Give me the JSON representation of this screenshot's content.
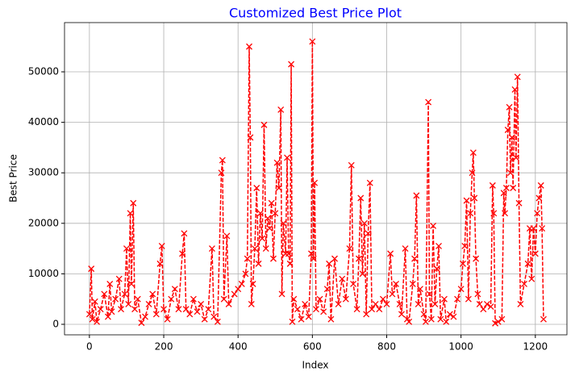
{
  "chart_data": {
    "type": "line",
    "title": "Customized Best Price Plot",
    "title_color": "#0000ff",
    "x_label": "Index",
    "y_label": "Best Price",
    "xlim": [
      -67,
      1285
    ],
    "ylim": [
      -2080,
      59750
    ],
    "xticks": [
      0,
      200,
      400,
      600,
      800,
      1000,
      1200
    ],
    "yticks": [
      0,
      10000,
      20000,
      30000,
      40000,
      50000
    ],
    "grid": true,
    "x": [
      0,
      5,
      8,
      15,
      20,
      30,
      40,
      50,
      55,
      60,
      70,
      80,
      85,
      95,
      100,
      105,
      110,
      113,
      118,
      122,
      130,
      140,
      150,
      160,
      170,
      180,
      190,
      195,
      200,
      210,
      220,
      230,
      240,
      250,
      255,
      260,
      270,
      280,
      290,
      300,
      310,
      320,
      330,
      335,
      345,
      355,
      358,
      362,
      370,
      375,
      390,
      400,
      410,
      420,
      425,
      430,
      433,
      436,
      440,
      445,
      450,
      455,
      460,
      465,
      470,
      475,
      480,
      485,
      490,
      495,
      500,
      505,
      510,
      515,
      518,
      522,
      528,
      532,
      536,
      540,
      543,
      546,
      550,
      560,
      570,
      580,
      590,
      597,
      600,
      603,
      606,
      610,
      620,
      630,
      640,
      645,
      650,
      660,
      670,
      680,
      690,
      700,
      705,
      710,
      720,
      725,
      730,
      735,
      740,
      745,
      750,
      755,
      760,
      770,
      780,
      790,
      800,
      810,
      815,
      825,
      835,
      840,
      850,
      855,
      860,
      870,
      875,
      880,
      885,
      890,
      900,
      905,
      912,
      915,
      920,
      925,
      930,
      935,
      940,
      945,
      955,
      960,
      970,
      980,
      990,
      1000,
      1005,
      1010,
      1015,
      1020,
      1025,
      1030,
      1033,
      1036,
      1040,
      1045,
      1050,
      1060,
      1070,
      1080,
      1085,
      1088,
      1092,
      1100,
      1110,
      1115,
      1118,
      1122,
      1126,
      1130,
      1133,
      1137,
      1140,
      1145,
      1148,
      1152,
      1156,
      1160,
      1170,
      1180,
      1185,
      1190,
      1195,
      1200,
      1205,
      1210,
      1215,
      1218,
      1222
    ],
    "series": [
      {
        "color": "#ff0000",
        "values": [
          2000,
          11000,
          1000,
          4500,
          500,
          3000,
          6000,
          1500,
          8000,
          2500,
          5000,
          9000,
          3000,
          6000,
          15000,
          4000,
          22000,
          8000,
          24000,
          3000,
          5000,
          300,
          1500,
          4000,
          6000,
          2000,
          12000,
          15500,
          3000,
          1000,
          5000,
          7000,
          3000,
          14000,
          18000,
          3000,
          2000,
          5000,
          2500,
          4000,
          1000,
          3000,
          15000,
          1500,
          500,
          30000,
          32500,
          5000,
          17500,
          4000,
          6000,
          7000,
          8000,
          10000,
          13000,
          55000,
          37000,
          4000,
          8000,
          15000,
          27000,
          12000,
          22000,
          17000,
          39500,
          15000,
          21000,
          19000,
          24000,
          13000,
          22000,
          32000,
          27000,
          42500,
          6000,
          20000,
          14000,
          33000,
          14000,
          12000,
          51500,
          500,
          5000,
          3000,
          1000,
          4000,
          1500,
          14000,
          56000,
          13000,
          28000,
          3000,
          5000,
          2500,
          7000,
          12000,
          1000,
          13000,
          4000,
          9000,
          5000,
          15000,
          31500,
          8000,
          3000,
          13000,
          25000,
          10000,
          20000,
          2000,
          18000,
          28000,
          3000,
          4000,
          3000,
          5000,
          4000,
          14000,
          6000,
          8000,
          4000,
          2000,
          15000,
          1000,
          500,
          8000,
          13000,
          25500,
          4000,
          7000,
          2000,
          500,
          44000,
          6000,
          1000,
          19500,
          4000,
          11000,
          15500,
          1000,
          5000,
          500,
          2000,
          1500,
          5000,
          7000,
          12000,
          15500,
          24500,
          5000,
          22000,
          30000,
          34000,
          25000,
          13000,
          6000,
          4000,
          3000,
          4000,
          3500,
          27500,
          22000,
          200,
          500,
          1000,
          26000,
          22000,
          27000,
          38500,
          43000,
          30000,
          37000,
          27000,
          46500,
          33000,
          49000,
          24000,
          4000,
          8000,
          12000,
          19000,
          9000,
          19000,
          14000,
          22000,
          25000,
          27500,
          19000,
          1000
        ]
      }
    ]
  }
}
